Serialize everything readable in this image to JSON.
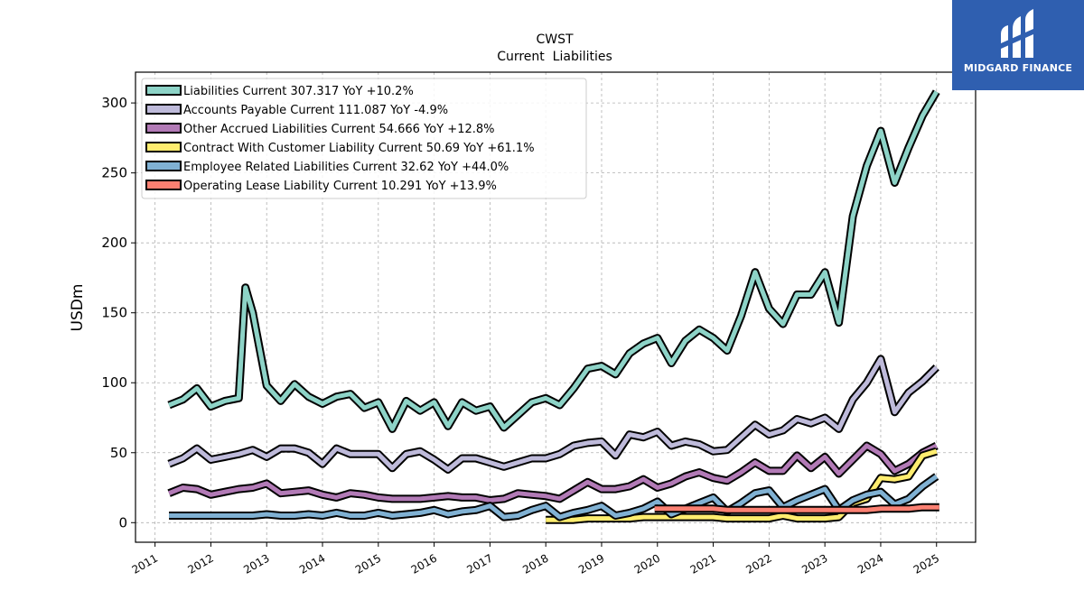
{
  "chart_data": {
    "type": "line",
    "title": "CWST",
    "subtitle": "Current  Liabilities",
    "ylabel": "USDm",
    "xlabel": "",
    "xlim": [
      2010.65,
      2025.7
    ],
    "ylim": [
      -14,
      322
    ],
    "yticks": [
      0,
      50,
      100,
      150,
      200,
      250,
      300
    ],
    "xticks": [
      "2011",
      "2012",
      "2013",
      "2014",
      "2015",
      "2016",
      "2017",
      "2018",
      "2019",
      "2020",
      "2021",
      "2022",
      "2023",
      "2024",
      "2025"
    ],
    "grid": true,
    "legend_position": "top-left",
    "series": [
      {
        "name": "Liabilities Current  307.317 YoY +10.2%",
        "color": "#8dd3c7",
        "points": [
          [
            2011.25,
            84
          ],
          [
            2011.5,
            88
          ],
          [
            2011.75,
            96
          ],
          [
            2012.0,
            83
          ],
          [
            2012.25,
            87
          ],
          [
            2012.5,
            89
          ],
          [
            2012.62,
            168
          ],
          [
            2012.75,
            150
          ],
          [
            2013.0,
            98
          ],
          [
            2013.25,
            87
          ],
          [
            2013.5,
            99
          ],
          [
            2013.75,
            90
          ],
          [
            2014.0,
            85
          ],
          [
            2014.25,
            90
          ],
          [
            2014.5,
            92
          ],
          [
            2014.75,
            82
          ],
          [
            2015.0,
            86
          ],
          [
            2015.25,
            67
          ],
          [
            2015.5,
            87
          ],
          [
            2015.75,
            80
          ],
          [
            2016.0,
            86
          ],
          [
            2016.25,
            69
          ],
          [
            2016.5,
            86
          ],
          [
            2016.75,
            80
          ],
          [
            2017.0,
            83
          ],
          [
            2017.25,
            68
          ],
          [
            2017.5,
            77
          ],
          [
            2017.75,
            86
          ],
          [
            2018.0,
            89
          ],
          [
            2018.25,
            84
          ],
          [
            2018.5,
            96
          ],
          [
            2018.75,
            110
          ],
          [
            2019.0,
            112
          ],
          [
            2019.25,
            106
          ],
          [
            2019.5,
            121
          ],
          [
            2019.75,
            128
          ],
          [
            2020.0,
            132
          ],
          [
            2020.25,
            114
          ],
          [
            2020.5,
            130
          ],
          [
            2020.75,
            138
          ],
          [
            2021.0,
            132
          ],
          [
            2021.25,
            123
          ],
          [
            2021.5,
            148
          ],
          [
            2021.75,
            179
          ],
          [
            2022.0,
            153
          ],
          [
            2022.25,
            142
          ],
          [
            2022.5,
            163
          ],
          [
            2022.75,
            163
          ],
          [
            2023.0,
            179
          ],
          [
            2023.25,
            143
          ],
          [
            2023.5,
            219
          ],
          [
            2023.75,
            255
          ],
          [
            2024.0,
            280
          ],
          [
            2024.25,
            243
          ],
          [
            2024.5,
            268
          ],
          [
            2024.75,
            291
          ],
          [
            2025.0,
            308
          ]
        ]
      },
      {
        "name": "Accounts Payable Current  111.087 YoY -4.9%",
        "color": "#bebada",
        "points": [
          [
            2011.25,
            42
          ],
          [
            2011.5,
            46
          ],
          [
            2011.75,
            53
          ],
          [
            2012.0,
            45
          ],
          [
            2012.25,
            47
          ],
          [
            2012.5,
            49
          ],
          [
            2012.75,
            52
          ],
          [
            2013.0,
            47
          ],
          [
            2013.25,
            53
          ],
          [
            2013.5,
            53
          ],
          [
            2013.75,
            50
          ],
          [
            2014.0,
            42
          ],
          [
            2014.25,
            53
          ],
          [
            2014.5,
            49
          ],
          [
            2014.75,
            49
          ],
          [
            2015.0,
            49
          ],
          [
            2015.25,
            39
          ],
          [
            2015.5,
            49
          ],
          [
            2015.75,
            51
          ],
          [
            2016.0,
            45
          ],
          [
            2016.25,
            38
          ],
          [
            2016.5,
            46
          ],
          [
            2016.75,
            46
          ],
          [
            2017.0,
            43
          ],
          [
            2017.25,
            40
          ],
          [
            2017.5,
            43
          ],
          [
            2017.75,
            46
          ],
          [
            2018.0,
            46
          ],
          [
            2018.25,
            49
          ],
          [
            2018.5,
            55
          ],
          [
            2018.75,
            57
          ],
          [
            2019.0,
            58
          ],
          [
            2019.25,
            48
          ],
          [
            2019.5,
            63
          ],
          [
            2019.75,
            61
          ],
          [
            2020.0,
            65
          ],
          [
            2020.25,
            55
          ],
          [
            2020.5,
            58
          ],
          [
            2020.75,
            56
          ],
          [
            2021.0,
            51
          ],
          [
            2021.25,
            52
          ],
          [
            2021.5,
            61
          ],
          [
            2021.75,
            70
          ],
          [
            2022.0,
            63
          ],
          [
            2022.25,
            66
          ],
          [
            2022.5,
            74
          ],
          [
            2022.75,
            71
          ],
          [
            2023.0,
            75
          ],
          [
            2023.25,
            67
          ],
          [
            2023.5,
            88
          ],
          [
            2023.75,
            100
          ],
          [
            2024.0,
            117
          ],
          [
            2024.25,
            79
          ],
          [
            2024.5,
            93
          ],
          [
            2024.75,
            101
          ],
          [
            2025.0,
            111
          ]
        ]
      },
      {
        "name": "Other Accrued Liabilities Current  54.666 YoY +12.8%",
        "color": "#b27ab6",
        "points": [
          [
            2011.25,
            21
          ],
          [
            2011.5,
            25
          ],
          [
            2011.75,
            24
          ],
          [
            2012.0,
            20
          ],
          [
            2012.25,
            22
          ],
          [
            2012.5,
            24
          ],
          [
            2012.75,
            25
          ],
          [
            2013.0,
            28
          ],
          [
            2013.25,
            21
          ],
          [
            2013.5,
            22
          ],
          [
            2013.75,
            23
          ],
          [
            2014.0,
            20
          ],
          [
            2014.25,
            18
          ],
          [
            2014.5,
            21
          ],
          [
            2014.75,
            20
          ],
          [
            2015.0,
            18
          ],
          [
            2015.25,
            17
          ],
          [
            2015.5,
            17
          ],
          [
            2015.75,
            17
          ],
          [
            2016.0,
            18
          ],
          [
            2016.25,
            19
          ],
          [
            2016.5,
            18
          ],
          [
            2016.75,
            18
          ],
          [
            2017.0,
            16
          ],
          [
            2017.25,
            17
          ],
          [
            2017.5,
            21
          ],
          [
            2017.75,
            20
          ],
          [
            2018.0,
            19
          ],
          [
            2018.25,
            17
          ],
          [
            2018.5,
            23
          ],
          [
            2018.75,
            29
          ],
          [
            2019.0,
            24
          ],
          [
            2019.25,
            24
          ],
          [
            2019.5,
            26
          ],
          [
            2019.75,
            31
          ],
          [
            2020.0,
            25
          ],
          [
            2020.25,
            28
          ],
          [
            2020.5,
            33
          ],
          [
            2020.75,
            36
          ],
          [
            2021.0,
            32
          ],
          [
            2021.25,
            30
          ],
          [
            2021.5,
            36
          ],
          [
            2021.75,
            43
          ],
          [
            2022.0,
            37
          ],
          [
            2022.25,
            37
          ],
          [
            2022.5,
            48
          ],
          [
            2022.75,
            39
          ],
          [
            2023.0,
            47
          ],
          [
            2023.25,
            35
          ],
          [
            2023.5,
            45
          ],
          [
            2023.75,
            55
          ],
          [
            2024.0,
            49
          ],
          [
            2024.25,
            37
          ],
          [
            2024.5,
            42
          ],
          [
            2024.75,
            50
          ],
          [
            2025.0,
            55
          ]
        ]
      },
      {
        "name": "Contract With Customer Liability Current  50.69 YoY +61.1%",
        "color": "#ffed6f",
        "points": [
          [
            2018.0,
            2
          ],
          [
            2018.25,
            2
          ],
          [
            2018.5,
            2
          ],
          [
            2018.75,
            3
          ],
          [
            2019.0,
            3
          ],
          [
            2019.25,
            3
          ],
          [
            2019.5,
            3
          ],
          [
            2019.75,
            4
          ],
          [
            2020.0,
            4
          ],
          [
            2020.25,
            4
          ],
          [
            2020.5,
            4
          ],
          [
            2020.75,
            4
          ],
          [
            2021.0,
            4
          ],
          [
            2021.25,
            3
          ],
          [
            2021.5,
            3
          ],
          [
            2021.75,
            3
          ],
          [
            2022.0,
            3
          ],
          [
            2022.25,
            5
          ],
          [
            2022.5,
            3
          ],
          [
            2022.75,
            3
          ],
          [
            2023.0,
            3
          ],
          [
            2023.25,
            4
          ],
          [
            2023.5,
            14
          ],
          [
            2023.75,
            17
          ],
          [
            2024.0,
            32
          ],
          [
            2024.25,
            31
          ],
          [
            2024.5,
            33
          ],
          [
            2024.75,
            48
          ],
          [
            2025.0,
            51
          ]
        ]
      },
      {
        "name": "Employee Related Liabilities Current  32.62 YoY +44.0%",
        "color": "#80b1d3",
        "points": [
          [
            2011.25,
            5
          ],
          [
            2011.5,
            5
          ],
          [
            2011.75,
            5
          ],
          [
            2012.0,
            5
          ],
          [
            2012.25,
            5
          ],
          [
            2012.5,
            5
          ],
          [
            2012.75,
            5
          ],
          [
            2013.0,
            6
          ],
          [
            2013.25,
            5
          ],
          [
            2013.5,
            5
          ],
          [
            2013.75,
            6
          ],
          [
            2014.0,
            5
          ],
          [
            2014.25,
            7
          ],
          [
            2014.5,
            5
          ],
          [
            2014.75,
            5
          ],
          [
            2015.0,
            7
          ],
          [
            2015.25,
            5
          ],
          [
            2015.5,
            6
          ],
          [
            2015.75,
            7
          ],
          [
            2016.0,
            9
          ],
          [
            2016.25,
            6
          ],
          [
            2016.5,
            8
          ],
          [
            2016.75,
            9
          ],
          [
            2017.0,
            12
          ],
          [
            2017.25,
            4
          ],
          [
            2017.5,
            5
          ],
          [
            2017.75,
            9
          ],
          [
            2018.0,
            12
          ],
          [
            2018.25,
            4
          ],
          [
            2018.5,
            7
          ],
          [
            2018.75,
            9
          ],
          [
            2019.0,
            12
          ],
          [
            2019.25,
            5
          ],
          [
            2019.5,
            7
          ],
          [
            2019.75,
            10
          ],
          [
            2020.0,
            15
          ],
          [
            2020.25,
            6
          ],
          [
            2020.5,
            10
          ],
          [
            2020.75,
            14
          ],
          [
            2021.0,
            18
          ],
          [
            2021.25,
            8
          ],
          [
            2021.5,
            14
          ],
          [
            2021.75,
            21
          ],
          [
            2022.0,
            23
          ],
          [
            2022.25,
            11
          ],
          [
            2022.5,
            16
          ],
          [
            2022.75,
            20
          ],
          [
            2023.0,
            24
          ],
          [
            2023.25,
            9
          ],
          [
            2023.5,
            16
          ],
          [
            2023.75,
            20
          ],
          [
            2024.0,
            22
          ],
          [
            2024.25,
            13
          ],
          [
            2024.5,
            17
          ],
          [
            2024.75,
            26
          ],
          [
            2025.0,
            33
          ]
        ]
      },
      {
        "name": "Operating Lease Liability Current  10.291 YoY +13.9%",
        "color": "#fb8072",
        "points": [
          [
            2019.95,
            10
          ],
          [
            2020.25,
            10
          ],
          [
            2020.5,
            10
          ],
          [
            2020.75,
            10
          ],
          [
            2021.0,
            10
          ],
          [
            2021.25,
            9
          ],
          [
            2021.5,
            9
          ],
          [
            2021.75,
            9
          ],
          [
            2022.0,
            9
          ],
          [
            2022.25,
            9
          ],
          [
            2022.5,
            9
          ],
          [
            2022.75,
            9
          ],
          [
            2023.0,
            9
          ],
          [
            2023.25,
            9
          ],
          [
            2023.5,
            9
          ],
          [
            2023.75,
            9
          ],
          [
            2024.0,
            10
          ],
          [
            2024.25,
            10
          ],
          [
            2024.5,
            10
          ],
          [
            2024.75,
            11
          ],
          [
            2025.05,
            11
          ]
        ]
      }
    ]
  },
  "logo": {
    "text": "MIDGARD FINANCE",
    "color": "#2f5fb0"
  }
}
